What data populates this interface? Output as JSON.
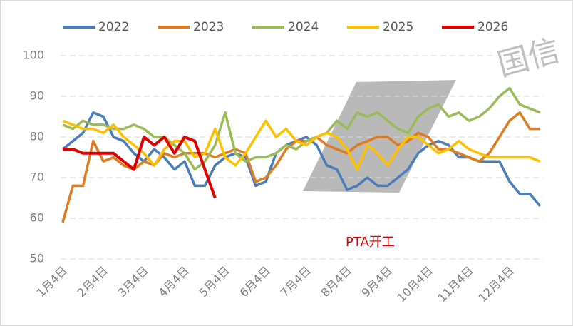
{
  "chart_data": {
    "type": "line",
    "categories": [
      "1月4日",
      null,
      null,
      null,
      "2月4日",
      null,
      null,
      null,
      "3月4日",
      null,
      null,
      null,
      "4月4日",
      null,
      null,
      null,
      "5月4日",
      null,
      null,
      null,
      "6月4日",
      null,
      null,
      null,
      "7月4日",
      null,
      null,
      null,
      "8月4日",
      null,
      null,
      null,
      "9月4日",
      null,
      null,
      null,
      "10月4日",
      null,
      null,
      null,
      "11月4日",
      null,
      null,
      null,
      "12月4日",
      null,
      null,
      null
    ],
    "series": [
      {
        "name": "2022",
        "color": "#4a7ebb",
        "values": [
          77,
          79,
          81,
          86,
          85,
          80,
          79,
          76,
          74,
          77,
          75,
          72,
          74,
          68,
          68,
          73,
          75,
          76,
          75,
          68,
          69,
          76,
          78,
          79,
          80,
          78,
          73,
          72,
          67,
          68,
          70,
          68,
          68,
          70,
          72,
          76,
          78,
          79,
          78,
          75,
          75,
          74,
          74,
          74,
          69,
          66,
          66,
          63
        ]
      },
      {
        "name": "2023",
        "color": "#e07b1f",
        "values": [
          59,
          68,
          68,
          79,
          74,
          75,
          73,
          72,
          74,
          73,
          76,
          75,
          76,
          76,
          76,
          75,
          76,
          77,
          76,
          69,
          70,
          73,
          77,
          79,
          79,
          80,
          78,
          77,
          76,
          78,
          79,
          80,
          80,
          78,
          79,
          81,
          80,
          77,
          77,
          76,
          75,
          74,
          76,
          80,
          84,
          86,
          82,
          82
        ]
      },
      {
        "name": "2024",
        "color": "#9bbb59",
        "values": [
          83,
          82,
          84,
          83,
          83,
          82,
          82,
          83,
          82,
          80,
          80,
          78,
          76,
          72,
          74,
          78,
          86,
          76,
          74,
          75,
          75,
          76,
          78,
          77,
          79,
          80,
          81,
          84,
          82,
          86,
          85,
          86,
          84,
          82,
          81,
          85,
          87,
          88,
          85,
          86,
          84,
          85,
          87,
          90,
          92,
          88,
          87,
          86
        ]
      },
      {
        "name": "2025",
        "color": "#ffc000",
        "values": [
          84,
          83,
          82,
          82,
          81,
          83,
          80,
          78,
          76,
          73,
          77,
          79,
          79,
          75,
          76,
          82,
          75,
          73,
          76,
          80,
          84,
          80,
          82,
          79,
          78,
          80,
          81,
          80,
          77,
          72,
          78,
          76,
          73,
          77,
          80,
          80,
          78,
          76,
          77,
          79,
          77,
          76,
          75,
          75,
          75,
          75,
          75,
          74
        ]
      },
      {
        "name": "2026",
        "color": "#e00000",
        "values": [
          77,
          77,
          76,
          76,
          76,
          76,
          74,
          72,
          80,
          78,
          80,
          76,
          80,
          79,
          72,
          65,
          null,
          null,
          null,
          null,
          null,
          null,
          null,
          null,
          null,
          null,
          null,
          null,
          null,
          null,
          null,
          null,
          null,
          null,
          null,
          null,
          null,
          null,
          null,
          null,
          null,
          null,
          null,
          null,
          null,
          null,
          null,
          null
        ]
      }
    ],
    "ylim": [
      50,
      100
    ],
    "yticks": [
      50,
      60,
      70,
      80,
      90,
      100
    ],
    "grid": true,
    "annotation": "PTA开工",
    "watermark": "国信"
  }
}
